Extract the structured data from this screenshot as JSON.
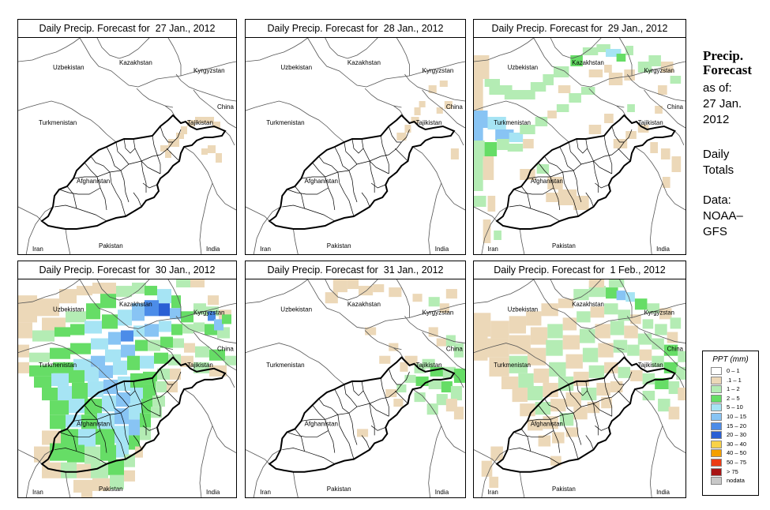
{
  "panels": [
    {
      "title": "Daily Precip. Forecast for  27 Jan., 2012",
      "precip": "p1"
    },
    {
      "title": "Daily Precip. Forecast for  28 Jan., 2012",
      "precip": "p2"
    },
    {
      "title": "Daily Precip. Forecast for  29 Jan., 2012",
      "precip": "p3"
    },
    {
      "title": "Daily Precip. Forecast for  30 Jan., 2012",
      "precip": "p4"
    },
    {
      "title": "Daily Precip. Forecast for  31 Jan., 2012",
      "precip": "p5"
    },
    {
      "title": "Daily Precip. Forecast for  1 Feb., 2012",
      "precip": "p6"
    }
  ],
  "country_labels": {
    "uzbekistan": "Uzbekistan",
    "kazakhstan": "Kazakhstan",
    "kyrgyzstan": "Kyrgyzstan",
    "china": "China",
    "tajikistan": "Tajikistan",
    "turkmenistan": "Turkmenistan",
    "afghanistan": "Afghanistan",
    "iran": "Iran",
    "pakistan": "Pakistan",
    "india": "India"
  },
  "side": {
    "title_line1": "Precip.",
    "title_line2": "Forecast",
    "asof_line1": "as of:",
    "asof_line2": "27 Jan.",
    "asof_line3": "2012",
    "totals_line1": "Daily",
    "totals_line2": "Totals",
    "data_line1": "Data:",
    "data_line2": "NOAA–",
    "data_line3": "GFS"
  },
  "legend": {
    "title": "PPT (mm)",
    "items": [
      {
        "label": "0 – 1",
        "color": "#ffffff"
      },
      {
        "label": ".1 – 1",
        "color": "#ecd8b8"
      },
      {
        "label": "1 – 2",
        "color": "#b4ecb4"
      },
      {
        "label": "2 – 5",
        "color": "#66dd66"
      },
      {
        "label": "5 – 10",
        "color": "#a6e4f4"
      },
      {
        "label": "10 – 15",
        "color": "#88c4f4"
      },
      {
        "label": "15 – 20",
        "color": "#4c8ce8"
      },
      {
        "label": "20 – 30",
        "color": "#2a5fd4"
      },
      {
        "label": "30 – 40",
        "color": "#f8d248"
      },
      {
        "label": "40 – 50",
        "color": "#f4a000"
      },
      {
        "label": "50 – 75",
        "color": "#ec3c14"
      },
      {
        "label": "> 75",
        "color": "#a81414"
      },
      {
        "label": "nodata",
        "color": "#c8c8c8"
      }
    ]
  }
}
